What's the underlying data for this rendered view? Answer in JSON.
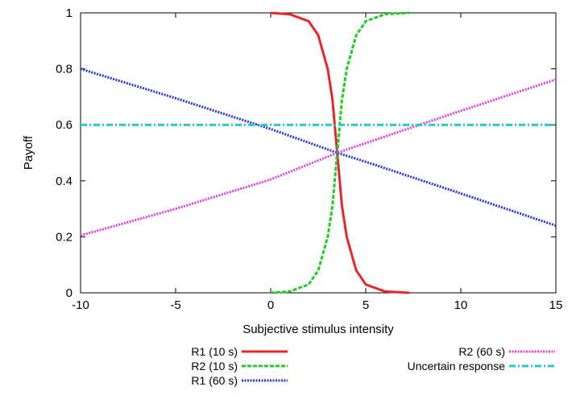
{
  "chart_data": {
    "type": "line",
    "title": "",
    "xlabel": "Subjective stimulus intensity",
    "ylabel": "Payoff",
    "xlim": [
      -10,
      15
    ],
    "ylim": [
      0,
      1
    ],
    "x_ticks": [
      "-10",
      "-5",
      "0",
      "5",
      "10",
      "15"
    ],
    "y_ticks": [
      "0",
      "0.2",
      "0.4",
      "0.6",
      "0.8",
      "1"
    ],
    "grid": false,
    "legend_position": "bottom",
    "series": [
      {
        "name": "R1 (10 s)",
        "color": "#e8262a",
        "style": "solid",
        "x": [
          0,
          1,
          2,
          2.5,
          3,
          3.25,
          3.5,
          3.75,
          4,
          4.5,
          5,
          6,
          7.3
        ],
        "y": [
          1.0,
          0.995,
          0.97,
          0.92,
          0.8,
          0.69,
          0.5,
          0.31,
          0.2,
          0.08,
          0.03,
          0.005,
          0.0
        ]
      },
      {
        "name": "R2 (10 s)",
        "color": "#22cc22",
        "style": "dashed",
        "x": [
          0,
          1,
          2,
          2.5,
          3,
          3.25,
          3.5,
          3.75,
          4,
          4.5,
          5,
          6,
          7.3
        ],
        "y": [
          0.0,
          0.005,
          0.03,
          0.08,
          0.2,
          0.31,
          0.5,
          0.69,
          0.8,
          0.92,
          0.97,
          0.995,
          1.0
        ]
      },
      {
        "name": "R1 (60 s)",
        "color": "#2233dd",
        "style": "dotted",
        "x": [
          -10,
          -5,
          0,
          3.5,
          5,
          10,
          15
        ],
        "y": [
          0.8,
          0.695,
          0.585,
          0.5,
          0.468,
          0.355,
          0.24
        ]
      },
      {
        "name": "R2 (60 s)",
        "color": "#e040e0",
        "style": "dotted",
        "x": [
          -10,
          -5,
          0,
          3.5,
          5,
          10,
          15
        ],
        "y": [
          0.205,
          0.3,
          0.405,
          0.5,
          0.535,
          0.65,
          0.762
        ]
      },
      {
        "name": "Uncertain response",
        "color": "#22cccc",
        "style": "dashdot",
        "x": [
          -10,
          15
        ],
        "y": [
          0.6,
          0.6
        ]
      }
    ]
  }
}
